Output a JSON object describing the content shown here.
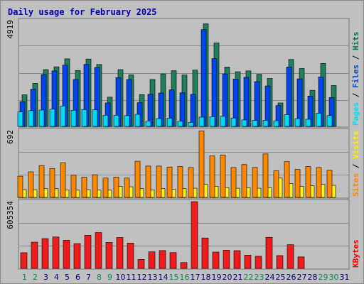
{
  "chart_data": {
    "type": "bar",
    "title": "Daily usage for February 2025",
    "categories": [
      "1",
      "2",
      "3",
      "4",
      "5",
      "6",
      "7",
      "8",
      "9",
      "10",
      "11",
      "12",
      "13",
      "14",
      "15",
      "16",
      "17",
      "18",
      "19",
      "20",
      "21",
      "22",
      "23",
      "24",
      "25",
      "26",
      "27",
      "28",
      "29",
      "30",
      "31"
    ],
    "weekend_days": [
      1,
      2,
      8,
      9,
      15,
      16,
      22,
      23,
      29,
      30
    ],
    "panels": [
      {
        "max_label": "4919",
        "ylim": [
          0,
          4919
        ],
        "legend": [
          {
            "text": "Pages",
            "color": "#00e0f0"
          },
          {
            "sep": " / "
          },
          {
            "text": "Files",
            "color": "#0050c8"
          },
          {
            "sep": " / "
          },
          {
            "text": "Hits",
            "color": "#007850"
          }
        ],
        "series": [
          {
            "name": "Hits",
            "color": "#1f7f5a",
            "values": [
              1470,
              2000,
              2640,
              2770,
              3140,
              2600,
              3130,
              2880,
              1360,
              2640,
              2400,
              1480,
              2180,
              2440,
              2590,
              2390,
              2620,
              4770,
              3880,
              2760,
              2540,
              2580,
              2420,
              2230,
              1090,
              3110,
              2690,
              1680,
              2930,
              1900,
              0
            ]
          },
          {
            "name": "Files",
            "color": "#0044ee",
            "values": [
              1150,
              1730,
              2410,
              2580,
              2850,
              2180,
              2880,
              2740,
              1090,
              2270,
              2180,
              1100,
              1490,
              1550,
              1700,
              1560,
              1490,
              4500,
              3150,
              2440,
              2200,
              2280,
              2080,
              1880,
              970,
              2760,
              2210,
              1410,
              2300,
              1340,
              0
            ]
          },
          {
            "name": "Pages",
            "color": "#00d8f8",
            "values": [
              670,
              730,
              760,
              800,
              950,
              750,
              780,
              770,
              520,
              520,
              500,
              560,
              250,
              360,
              380,
              240,
              190,
              430,
              450,
              470,
              390,
              300,
              280,
              280,
              260,
              550,
              360,
              330,
              610,
              500,
              0
            ]
          }
        ]
      },
      {
        "max_label": "692",
        "ylim": [
          0,
          692
        ],
        "legend": [
          {
            "text": "Sites",
            "color": "#ff8800"
          },
          {
            "sep": " / "
          },
          {
            "text": "Visits",
            "color": "#ffee00"
          }
        ],
        "series": [
          {
            "name": "Visits",
            "color": "#f8f020",
            "values": [
              80,
              80,
              90,
              90,
              75,
              75,
              80,
              75,
              75,
              115,
              110,
              90,
              75,
              90,
              85,
              90,
              95,
              135,
              115,
              100,
              95,
              100,
              95,
              100,
              200,
              145,
              115,
              120,
              135,
              125,
              0
            ]
          },
          {
            "name": "Sites",
            "color": "#ff8800",
            "values": [
              220,
              265,
              330,
              300,
              360,
              230,
              210,
              235,
              200,
              210,
              200,
              375,
              325,
              325,
              315,
              320,
              310,
              690,
              430,
              440,
              310,
              340,
              310,
              450,
              275,
              370,
              290,
              320,
              310,
              280,
              0
            ]
          }
        ]
      },
      {
        "max_label": "605354",
        "ylim": [
          0,
          605354
        ],
        "legend": [
          {
            "text": "KBytes",
            "color": "#ff0000"
          }
        ],
        "series": [
          {
            "name": "KBytes",
            "color": "#ee1c1c",
            "values": [
              142000,
              238000,
              270000,
              285000,
              255000,
              225000,
              300000,
              325000,
              235000,
              280000,
              230000,
              81000,
              150000,
              162000,
              143000,
              53000,
              605354,
              276000,
              148000,
              165000,
              161000,
              120000,
              110000,
              282000,
              116000,
              215000,
              104000,
              0,
              0,
              0,
              0
            ]
          }
        ]
      }
    ]
  }
}
